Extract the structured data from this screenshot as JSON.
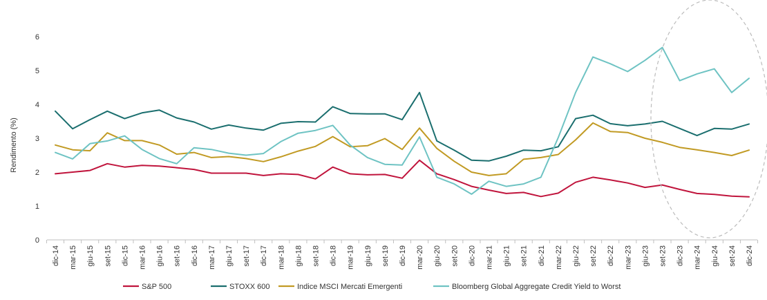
{
  "chart_data": {
    "type": "line",
    "title": "",
    "xlabel": "",
    "ylabel": "Rendimento (%)",
    "ylim": [
      0,
      6
    ],
    "yticks": [
      "0",
      "1",
      "2",
      "3",
      "4",
      "5",
      "6"
    ],
    "grid": false,
    "legend_position": "bottom",
    "categories": [
      "dic-14",
      "mar-15",
      "giu-15",
      "set-15",
      "dic-15",
      "mar-16",
      "giu-16",
      "set-16",
      "dic-16",
      "mar-17",
      "giu-17",
      "set-17",
      "dic-17",
      "mar-18",
      "giu-18",
      "set-18",
      "dic-18",
      "mar-19",
      "giu-19",
      "set-19",
      "dic-19",
      "mar-20",
      "giu-20",
      "set-20",
      "dic-20",
      "mar-21",
      "giu-21",
      "set-21",
      "dic-21",
      "mar-22",
      "giu-22",
      "set-22",
      "dic-22",
      "mar-23",
      "giu-23",
      "set-23",
      "dic-23",
      "mar-24",
      "giu-24",
      "set-24",
      "dic-24"
    ],
    "series": [
      {
        "name": "S&P 500",
        "color": "#C0143C",
        "values": [
          1.95,
          2.0,
          2.05,
          2.25,
          2.15,
          2.2,
          2.18,
          2.13,
          2.08,
          1.97,
          1.97,
          1.97,
          1.9,
          1.95,
          1.93,
          1.8,
          2.15,
          1.95,
          1.92,
          1.93,
          1.82,
          2.35,
          1.95,
          1.78,
          1.58,
          1.47,
          1.37,
          1.4,
          1.28,
          1.38,
          1.7,
          1.85,
          1.77,
          1.68,
          1.55,
          1.62,
          1.49,
          1.37,
          1.34,
          1.29,
          1.27
        ]
      },
      {
        "name": "STOXX 600",
        "color": "#1A6E6E",
        "values": [
          3.8,
          3.28,
          3.55,
          3.8,
          3.58,
          3.75,
          3.83,
          3.6,
          3.48,
          3.27,
          3.39,
          3.3,
          3.24,
          3.44,
          3.49,
          3.48,
          3.93,
          3.73,
          3.72,
          3.72,
          3.55,
          4.35,
          2.92,
          2.65,
          2.35,
          2.33,
          2.47,
          2.65,
          2.63,
          2.75,
          3.58,
          3.68,
          3.43,
          3.37,
          3.42,
          3.5,
          3.29,
          3.08,
          3.29,
          3.27,
          3.42
        ]
      },
      {
        "name": "Indice MSCI Mercati Emergenti",
        "color": "#C19A23",
        "values": [
          2.8,
          2.66,
          2.63,
          3.16,
          2.93,
          2.93,
          2.8,
          2.53,
          2.58,
          2.43,
          2.46,
          2.4,
          2.31,
          2.45,
          2.62,
          2.76,
          3.05,
          2.75,
          2.78,
          2.99,
          2.67,
          3.3,
          2.7,
          2.32,
          2.0,
          1.9,
          1.95,
          2.38,
          2.43,
          2.52,
          2.95,
          3.45,
          3.2,
          3.17,
          3.0,
          2.88,
          2.73,
          2.66,
          2.58,
          2.49,
          2.65
        ]
      },
      {
        "name": "Bloomberg Global Aggregate Credit Yield to Worst",
        "color": "#6EC3C3",
        "values": [
          2.58,
          2.39,
          2.84,
          2.92,
          3.07,
          2.67,
          2.4,
          2.25,
          2.72,
          2.67,
          2.56,
          2.5,
          2.55,
          2.9,
          3.15,
          3.23,
          3.38,
          2.8,
          2.43,
          2.23,
          2.21,
          3.04,
          1.85,
          1.65,
          1.35,
          1.73,
          1.58,
          1.65,
          1.85,
          3.02,
          4.35,
          5.4,
          5.2,
          4.97,
          5.3,
          5.68,
          4.7,
          4.9,
          5.05,
          4.35,
          4.77
        ]
      }
    ]
  }
}
